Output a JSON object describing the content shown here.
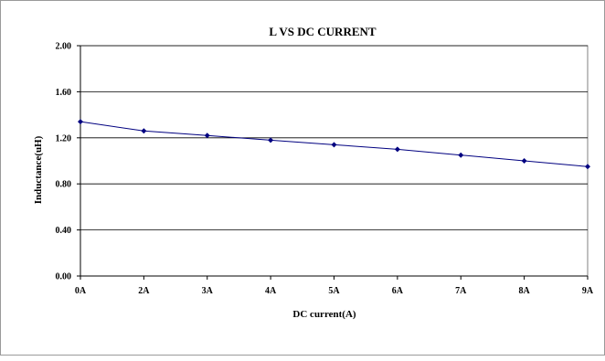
{
  "chart_data": {
    "type": "line",
    "title": "L VS DC CURRENT",
    "xlabel": "DC current(A)",
    "ylabel": "Inductance(uH)",
    "categories": [
      "0A",
      "2A",
      "3A",
      "4A",
      "5A",
      "6A",
      "7A",
      "8A",
      "9A"
    ],
    "series": [
      {
        "values": [
          1.34,
          1.26,
          1.22,
          1.18,
          1.14,
          1.1,
          1.05,
          1.0,
          0.95
        ]
      }
    ],
    "ylim": [
      0,
      2
    ],
    "yticks": [
      "0.00",
      "0.40",
      "0.80",
      "1.20",
      "1.60",
      "2.00"
    ],
    "ytick_values": [
      0,
      0.4,
      0.8,
      1.2,
      1.6,
      2.0
    ],
    "grid": "horizontal",
    "legend": "none",
    "colors": {
      "line": "#000080",
      "marker": "#000080",
      "grid": "#000000",
      "plot_border": "#808080"
    }
  }
}
